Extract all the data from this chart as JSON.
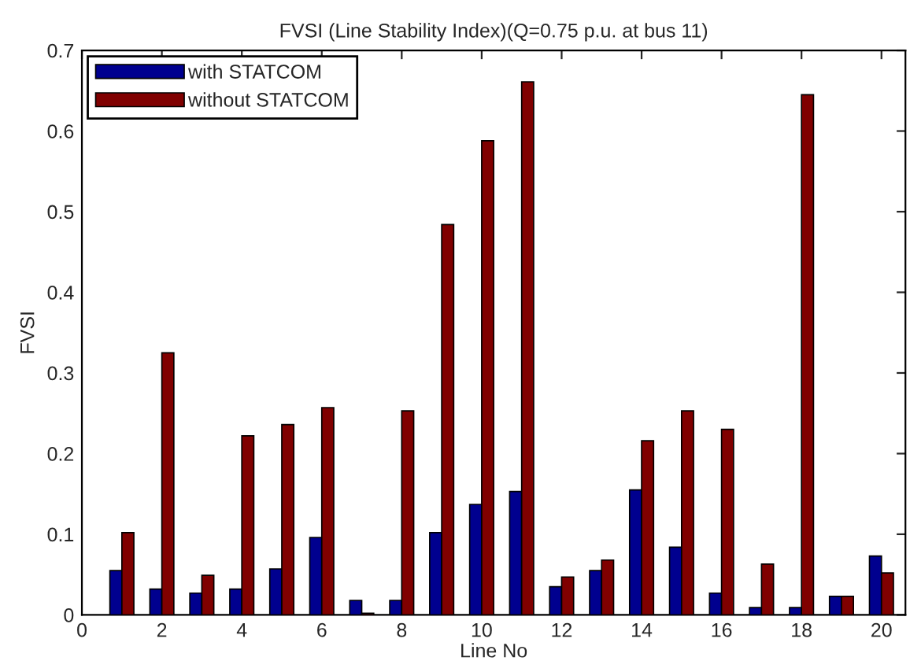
{
  "chart_data": {
    "type": "bar",
    "title": "FVSI (Line Stability Index)(Q=0.75 p.u. at bus 11)",
    "xlabel": "Line No",
    "ylabel": "FVSI",
    "x": [
      1,
      2,
      3,
      4,
      5,
      6,
      7,
      8,
      9,
      10,
      11,
      12,
      13,
      14,
      15,
      16,
      17,
      18,
      19,
      20
    ],
    "series": [
      {
        "name": "with STATCOM",
        "color": "#00008f",
        "values": [
          0.055,
          0.032,
          0.027,
          0.032,
          0.057,
          0.096,
          0.018,
          0.018,
          0.102,
          0.137,
          0.153,
          0.035,
          0.055,
          0.155,
          0.084,
          0.027,
          0.009,
          0.009,
          0.023,
          0.073
        ]
      },
      {
        "name": "without STATCOM",
        "color": "#800000",
        "values": [
          0.102,
          0.325,
          0.049,
          0.222,
          0.236,
          0.257,
          0.002,
          0.253,
          0.484,
          0.588,
          0.661,
          0.047,
          0.068,
          0.216,
          0.253,
          0.23,
          0.063,
          0.645,
          0.023,
          0.052
        ]
      }
    ],
    "xlim": [
      0,
      20.6
    ],
    "xticks": [
      0,
      2,
      4,
      6,
      8,
      10,
      12,
      14,
      16,
      18,
      20
    ],
    "ylim": [
      0,
      0.7
    ],
    "yticks": [
      0,
      0.1,
      0.2,
      0.3,
      0.4,
      0.5,
      0.6,
      0.7
    ],
    "legend": "top left",
    "grid": false
  }
}
